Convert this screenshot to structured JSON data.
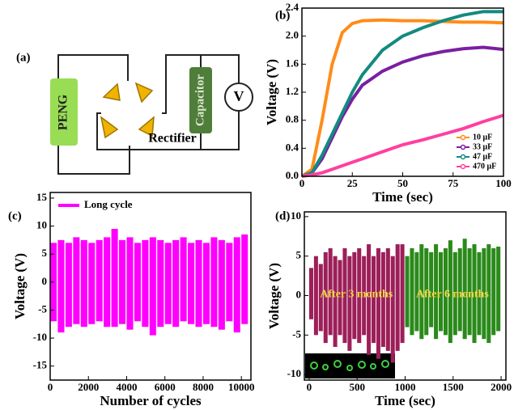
{
  "panel_a": {
    "label": "(a)",
    "peng": "PENG",
    "rectifier": "Rectifier",
    "capacitor": "Capacitor",
    "meter": "V"
  },
  "chart_data": [
    {
      "type": "line",
      "panel_label": "(b)",
      "xlabel": "Time (sec)",
      "ylabel": "Voltage (V)",
      "x": [
        0,
        5,
        10,
        15,
        20,
        25,
        30,
        40,
        50,
        60,
        70,
        80,
        90,
        100
      ],
      "series": [
        {
          "name": "10 μF",
          "color": "#ff8c1a",
          "values": [
            0,
            0.1,
            0.8,
            1.6,
            2.05,
            2.18,
            2.22,
            2.23,
            2.22,
            2.22,
            2.21,
            2.2,
            2.2,
            2.19
          ]
        },
        {
          "name": "33 μF",
          "color": "#7a1fa2",
          "values": [
            0,
            0.05,
            0.25,
            0.55,
            0.85,
            1.1,
            1.3,
            1.5,
            1.63,
            1.72,
            1.78,
            1.82,
            1.84,
            1.81
          ]
        },
        {
          "name": "47 μF",
          "color": "#138a80",
          "values": [
            0,
            0.05,
            0.3,
            0.6,
            0.9,
            1.2,
            1.45,
            1.8,
            2.0,
            2.12,
            2.22,
            2.3,
            2.35,
            2.35
          ]
        },
        {
          "name": "470 μF",
          "color": "#ff3fa0",
          "values": [
            0,
            0.02,
            0.05,
            0.1,
            0.15,
            0.2,
            0.25,
            0.35,
            0.45,
            0.52,
            0.6,
            0.68,
            0.78,
            0.87
          ]
        }
      ],
      "xlim": [
        0,
        100
      ],
      "ylim": [
        0,
        2.4
      ],
      "xticks": [
        0,
        25,
        50,
        75,
        100
      ],
      "yticks": [
        {
          "value": 0,
          "label": "0.0"
        },
        0.4,
        0.8,
        1.2,
        1.6,
        {
          "value": 2,
          "label": "2.0"
        },
        2.4
      ],
      "legend": "lower right"
    },
    {
      "type": "envelope",
      "panel_label": "(c)",
      "xlabel": "Number of cycles",
      "ylabel": "Voltage (V)",
      "series": [
        {
          "name": "Long cycle",
          "color": "#ff00ff",
          "x": [
            0,
            400,
            800,
            1200,
            1600,
            2000,
            2400,
            2800,
            3200,
            3600,
            4000,
            4400,
            4800,
            5200,
            5600,
            6000,
            6400,
            6800,
            7200,
            7600,
            8000,
            8400,
            8800,
            9200,
            9600,
            10000
          ],
          "max": [
            7,
            7.5,
            7,
            8,
            7.5,
            7,
            7.5,
            8,
            9.5,
            7.5,
            8,
            7,
            7.5,
            8,
            7.5,
            7,
            7.5,
            8,
            7,
            7.5,
            7,
            8,
            7.5,
            7,
            8,
            8.5
          ],
          "min": [
            -7,
            -9,
            -8,
            -7.5,
            -8,
            -7.5,
            -7,
            -8,
            -8,
            -7.5,
            -8.5,
            -7,
            -8,
            -9.5,
            -8,
            -7.5,
            -8,
            -7,
            -7.5,
            -8,
            -7.5,
            -8,
            -8.5,
            -7,
            -9,
            -7.5
          ]
        }
      ],
      "xlim": [
        0,
        10500
      ],
      "ylim": [
        -17.5,
        16
      ],
      "xticks": [
        0,
        2000,
        4000,
        6000,
        8000,
        10000
      ],
      "yticks": [
        -15,
        -10,
        -5,
        0,
        5,
        10,
        15
      ],
      "legend": "upper left"
    },
    {
      "type": "envelope",
      "panel_label": "(d)",
      "xlabel": "Time (sec)",
      "ylabel": "Voltage (V)",
      "series": [
        {
          "name": "After 3 months",
          "color": "#9c1f5a",
          "x": [
            0,
            50,
            100,
            150,
            200,
            250,
            300,
            350,
            400,
            450,
            500,
            550,
            600,
            650,
            700,
            750,
            800,
            850,
            900,
            950
          ],
          "max": [
            3.5,
            5,
            4,
            5.5,
            6,
            5,
            4.5,
            6,
            5,
            5.5,
            6,
            5,
            6.5,
            5,
            6,
            5.5,
            6,
            5,
            6.5,
            6.5
          ],
          "min": [
            -3,
            -5,
            -4.5,
            -6,
            -5,
            -6.5,
            -5,
            -6,
            -7,
            -5.5,
            -6,
            -5,
            -7.5,
            -6,
            -8,
            -6.5,
            -7,
            -8.5,
            -7,
            -6
          ]
        },
        {
          "name": "After 6 months",
          "color": "#2a8a1a",
          "x": [
            1000,
            1050,
            1100,
            1150,
            1200,
            1250,
            1300,
            1350,
            1400,
            1450,
            1500,
            1550,
            1600,
            1650,
            1700,
            1750,
            1800,
            1850,
            1900,
            1950
          ],
          "max": [
            5,
            6,
            5.5,
            6.5,
            6,
            5.5,
            6.5,
            5.5,
            6,
            7,
            5.5,
            6,
            7.2,
            6,
            6.5,
            5.5,
            6,
            6.5,
            6,
            6.2
          ],
          "min": [
            -4,
            -5,
            -4.5,
            -5.5,
            -5,
            -4,
            -5.5,
            -4.5,
            -5,
            -6,
            -5,
            -4.5,
            -5.5,
            -5,
            -6,
            -5,
            -5.5,
            -6,
            -5,
            -4.5
          ]
        }
      ],
      "xlim": [
        -50,
        2050
      ],
      "ylim": [
        -10.7,
        10.6
      ],
      "xticks": [
        0,
        500,
        1000,
        1500,
        2000
      ],
      "yticks": [
        -10,
        -5,
        0,
        5,
        10
      ]
    }
  ]
}
